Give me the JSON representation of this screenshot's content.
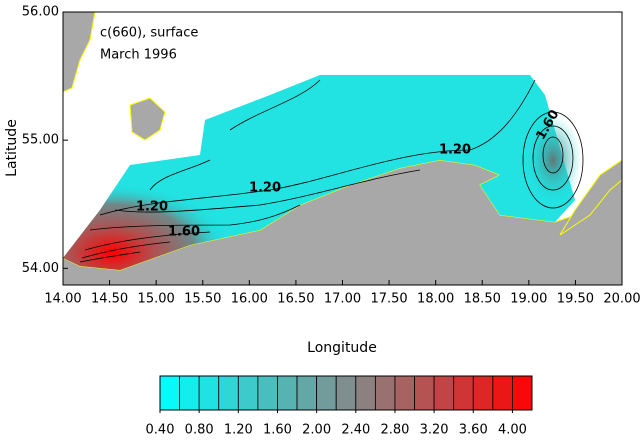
{
  "chart_data": {
    "type": "contour-map",
    "title": "c(660), surface",
    "subtitle": "March 1996",
    "xlabel": "Longitude",
    "ylabel": "Latitude",
    "xlim": [
      14.0,
      20.0
    ],
    "ylim": [
      53.87,
      56.0
    ],
    "xticks": [
      {
        "value": 14.0,
        "label": "14.00"
      },
      {
        "value": 14.5,
        "label": "14.50"
      },
      {
        "value": 15.0,
        "label": "15.00"
      },
      {
        "value": 15.5,
        "label": "15.50"
      },
      {
        "value": 16.0,
        "label": "16.00"
      },
      {
        "value": 16.5,
        "label": "16.50"
      },
      {
        "value": 17.0,
        "label": "17.00"
      },
      {
        "value": 17.5,
        "label": "17.50"
      },
      {
        "value": 18.0,
        "label": "18.00"
      },
      {
        "value": 18.5,
        "label": "18.50"
      },
      {
        "value": 19.0,
        "label": "19.00"
      },
      {
        "value": 19.5,
        "label": "19.50"
      },
      {
        "value": 20.0,
        "label": "20.00"
      }
    ],
    "yticks": [
      {
        "value": 54.0,
        "label": "54.00"
      },
      {
        "value": 55.0,
        "label": "55.00"
      },
      {
        "value": 56.0,
        "label": "56.00"
      }
    ],
    "contour_labels": [
      "1.20",
      "1.20",
      "1.20",
      "1.60",
      "1.60"
    ],
    "colorbar": {
      "min": 0.4,
      "max": 4.2,
      "step": 0.2,
      "colors": [
        "#00ffff",
        "#7f8f8f",
        "#ff0000"
      ],
      "ticks": [
        {
          "value": 0.4,
          "label": "0.40"
        },
        {
          "value": 0.8,
          "label": "0.80"
        },
        {
          "value": 1.2,
          "label": "1.20"
        },
        {
          "value": 1.6,
          "label": "1.60"
        },
        {
          "value": 2.0,
          "label": "2.00"
        },
        {
          "value": 2.4,
          "label": "2.40"
        },
        {
          "value": 2.8,
          "label": "2.80"
        },
        {
          "value": 3.2,
          "label": "3.20"
        },
        {
          "value": 3.6,
          "label": "3.60"
        },
        {
          "value": 4.0,
          "label": "4.00"
        }
      ]
    }
  }
}
